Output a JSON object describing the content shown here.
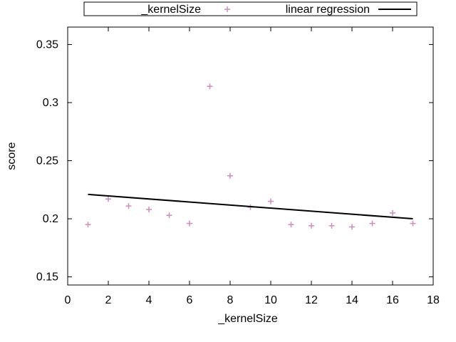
{
  "chart_data": {
    "type": "scatter",
    "title": "",
    "xlabel": "_kernelSize",
    "ylabel": "score",
    "xlim": [
      0,
      18
    ],
    "ylim": [
      0.143,
      0.365
    ],
    "x_ticks": [
      0,
      2,
      4,
      6,
      8,
      10,
      12,
      14,
      16,
      18
    ],
    "x_tick_labels": [
      "0",
      "2",
      "4",
      "6",
      "8",
      "10",
      "12",
      "14",
      "16",
      "18"
    ],
    "y_ticks": [
      0.15,
      0.2,
      0.25,
      0.3,
      0.35
    ],
    "y_tick_labels": [
      "0.15",
      "0.2",
      "0.25",
      "0.3",
      "0.35"
    ],
    "grid": false,
    "legend_position": "top",
    "series": [
      {
        "name": "_kernelSize",
        "kind": "points",
        "marker": "plus",
        "color": "#d18ac2",
        "x": [
          1,
          2,
          3,
          4,
          5,
          6,
          7,
          8,
          9,
          10,
          11,
          12,
          13,
          14,
          15,
          16,
          17
        ],
        "y": [
          0.195,
          0.217,
          0.211,
          0.208,
          0.203,
          0.196,
          0.314,
          0.237,
          0.21,
          0.215,
          0.195,
          0.194,
          0.194,
          0.193,
          0.196,
          0.205,
          0.196
        ]
      },
      {
        "name": "linear regression",
        "kind": "line",
        "color": "#000000",
        "x": [
          1,
          17
        ],
        "y": [
          0.221,
          0.2
        ]
      }
    ]
  }
}
